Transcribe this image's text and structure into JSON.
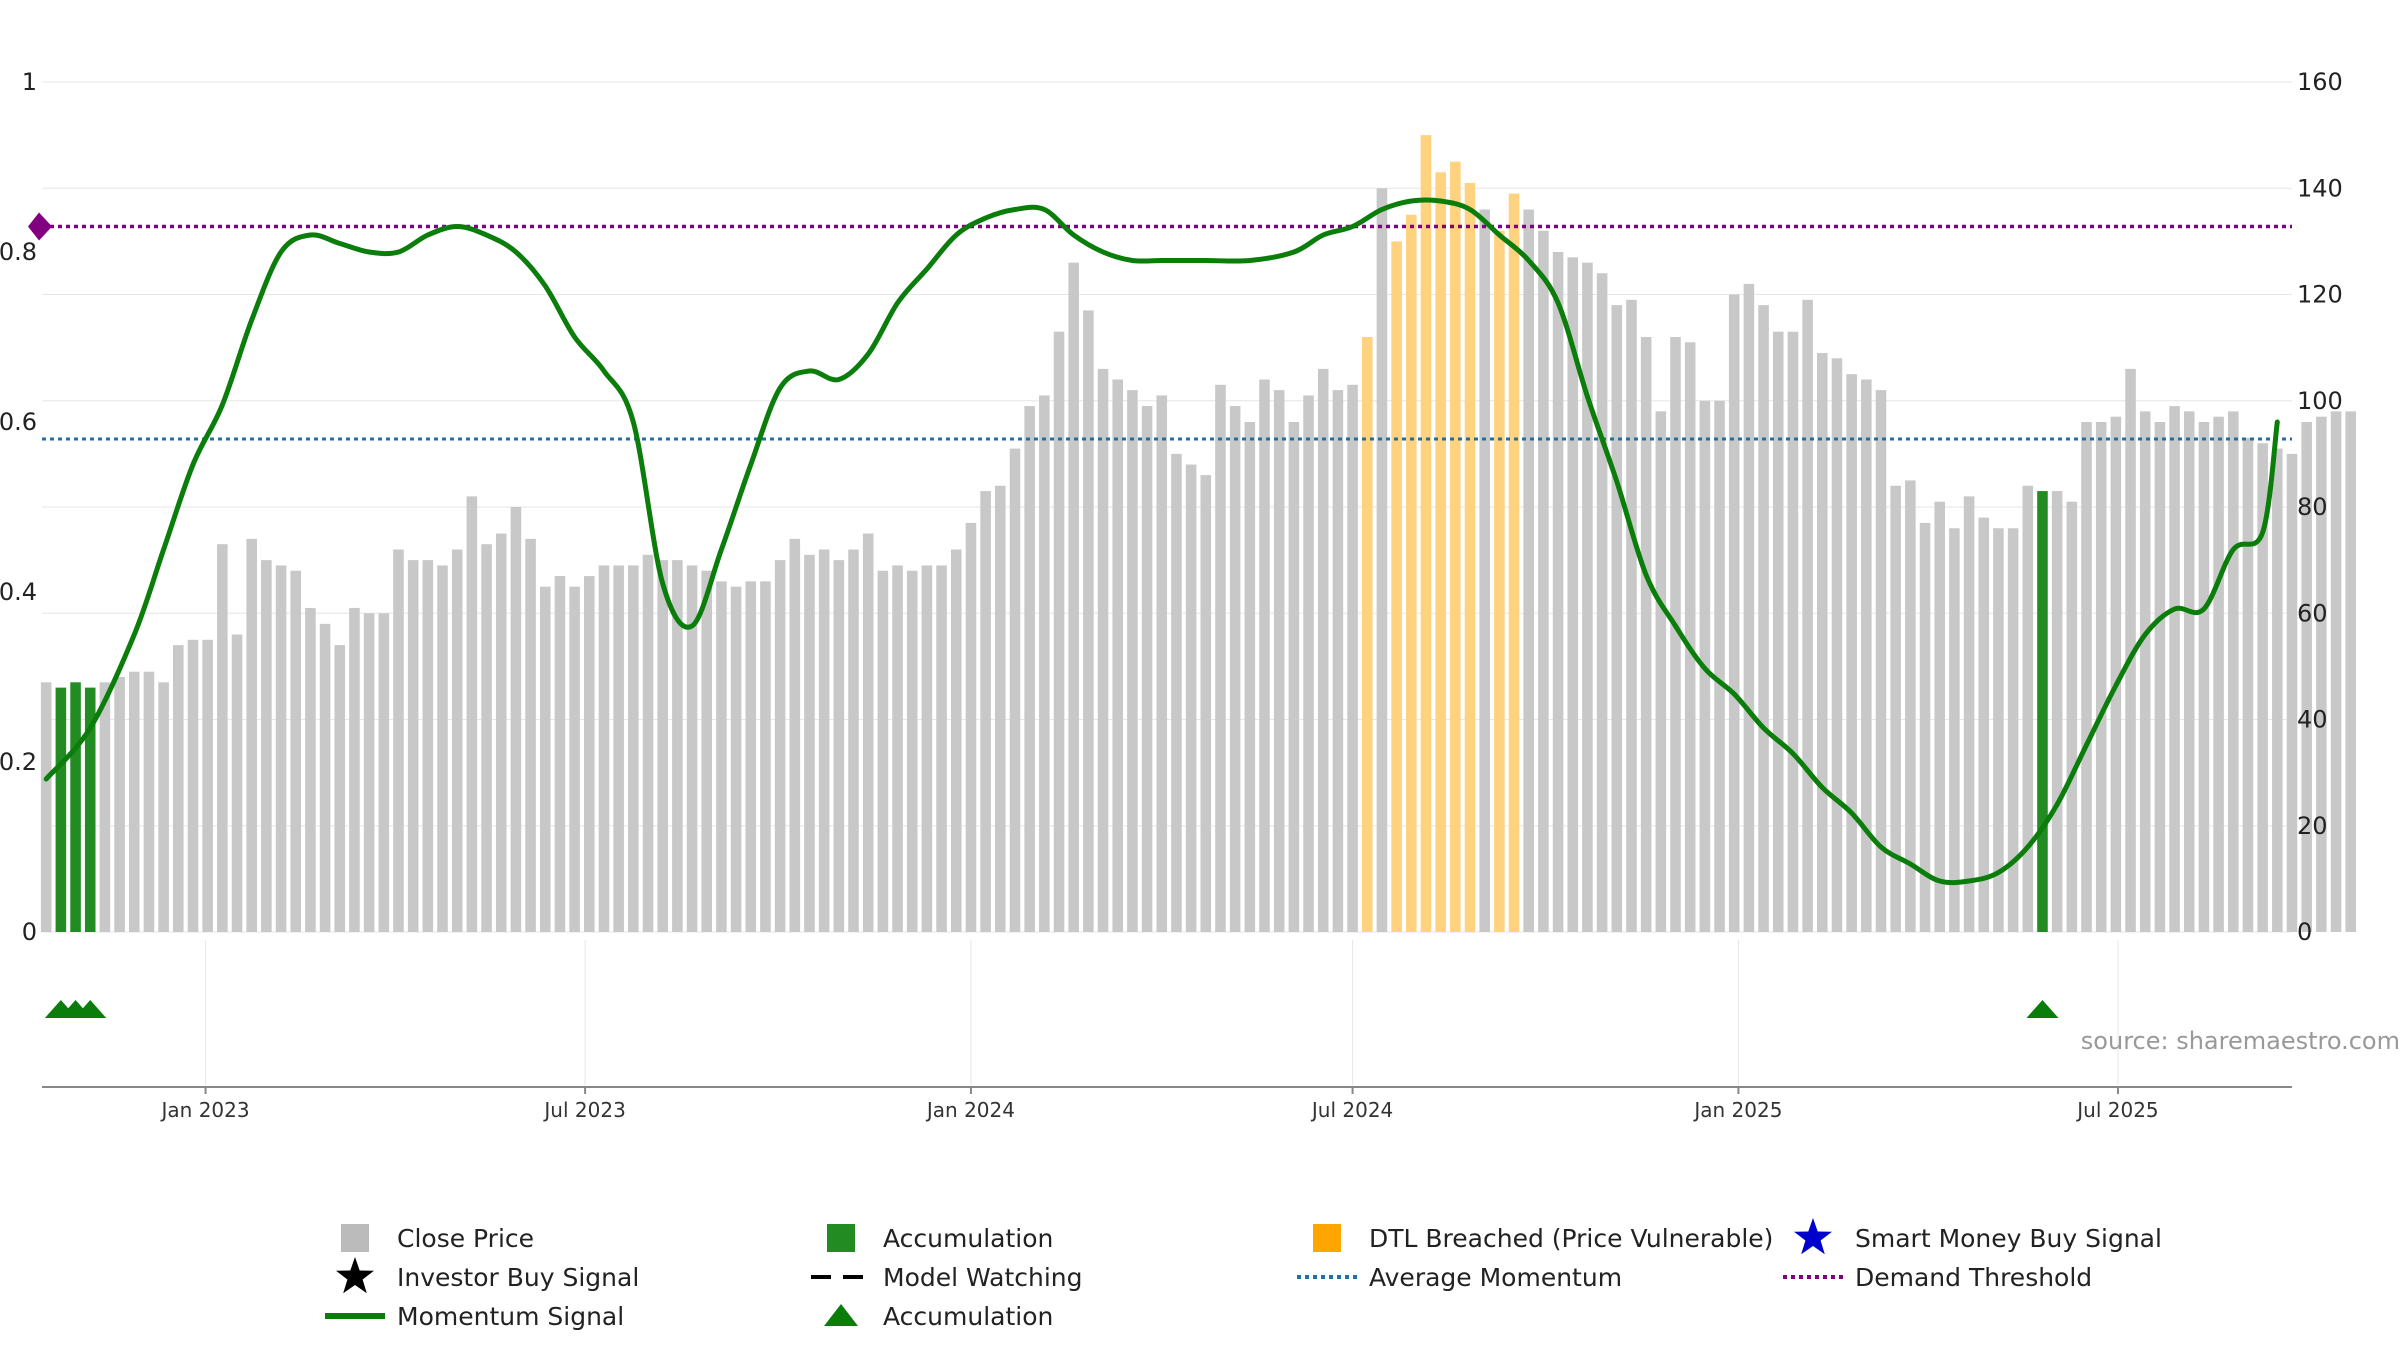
{
  "chart_data": {
    "type": "bar+line",
    "title": "",
    "source": "source: sharemaestro.com",
    "left_axis": {
      "range": [
        0,
        1
      ],
      "tick_values": [
        0,
        0.2,
        0.4,
        0.6,
        0.8,
        1
      ],
      "tick_labels": [
        "0",
        "0.2",
        "0.4",
        "0.6",
        "0.8",
        "1"
      ]
    },
    "right_axis": {
      "range": [
        0,
        160
      ],
      "tick_values": [
        0,
        20,
        40,
        60,
        80,
        100,
        120,
        140,
        160
      ],
      "tick_labels": [
        "0",
        "20",
        "40",
        "60",
        "80",
        "100",
        "120",
        "140",
        "160"
      ]
    },
    "x_axis": {
      "start": "2022-10-15",
      "end": "2025-09-22",
      "ticks": [
        {
          "date": "2023-01-01",
          "label": "Jan 2023"
        },
        {
          "date": "2023-07-01",
          "label": "Jul 2023"
        },
        {
          "date": "2024-01-01",
          "label": "Jan 2024"
        },
        {
          "date": "2024-07-01",
          "label": "Jul 2024"
        },
        {
          "date": "2025-01-01",
          "label": "Jan 2025"
        },
        {
          "date": "2025-07-01",
          "label": "Jul 2025"
        }
      ]
    },
    "close_price": {
      "first_week": "2022-10-17",
      "interval_days": 7,
      "values": [
        47,
        46,
        47,
        46,
        47,
        48,
        49,
        49,
        47,
        54,
        55,
        55,
        73,
        56,
        74,
        70,
        69,
        68,
        61,
        58,
        54,
        61,
        60,
        60,
        72,
        70,
        70,
        69,
        72,
        82,
        73,
        75,
        80,
        74,
        65,
        67,
        65,
        67,
        69,
        69,
        69,
        71,
        70,
        70,
        69,
        68,
        66,
        65,
        66,
        66,
        70,
        74,
        71,
        72,
        70,
        72,
        75,
        68,
        69,
        68,
        69,
        69,
        72,
        77,
        83,
        84,
        91,
        99,
        101,
        113,
        126,
        117,
        106,
        104,
        102,
        99,
        101,
        90,
        88,
        86,
        103,
        99,
        96,
        104,
        102,
        96,
        101,
        106,
        102,
        103,
        112,
        140,
        130,
        135,
        150,
        143,
        145,
        141,
        136,
        132,
        139,
        136,
        132,
        128,
        127,
        126,
        124,
        118,
        119,
        112,
        98,
        112,
        111,
        100,
        100,
        120,
        122,
        118,
        113,
        113,
        119,
        109,
        108,
        105,
        104,
        102,
        84,
        85,
        77,
        81,
        76,
        82,
        78,
        76,
        76,
        84,
        83,
        83,
        81,
        96,
        96,
        97,
        106,
        98,
        96,
        99,
        98,
        96,
        97,
        98,
        93,
        92,
        91,
        90,
        96,
        97,
        98,
        98
      ],
      "accumulation_weeks": [
        1,
        2,
        3,
        136
      ],
      "dtl_breached_weeks": [
        90,
        92,
        93,
        94,
        95,
        96,
        97,
        99,
        100
      ]
    },
    "momentum_signal": {
      "dates": [
        "2022-10-17",
        "2022-11-07",
        "2022-11-28",
        "2022-12-12",
        "2022-12-26",
        "2023-01-09",
        "2023-01-23",
        "2023-02-06",
        "2023-02-20",
        "2023-03-06",
        "2023-03-20",
        "2023-04-03",
        "2023-04-17",
        "2023-05-01",
        "2023-05-15",
        "2023-05-29",
        "2023-06-12",
        "2023-06-26",
        "2023-07-10",
        "2023-07-24",
        "2023-08-07",
        "2023-08-21",
        "2023-09-04",
        "2023-09-18",
        "2023-10-02",
        "2023-10-16",
        "2023-10-30",
        "2023-11-13",
        "2023-11-27",
        "2023-12-11",
        "2023-12-25",
        "2024-01-08",
        "2024-01-22",
        "2024-02-05",
        "2024-02-19",
        "2024-03-04",
        "2024-03-18",
        "2024-04-01",
        "2024-04-22",
        "2024-05-13",
        "2024-06-03",
        "2024-06-17",
        "2024-07-01",
        "2024-07-15",
        "2024-07-29",
        "2024-08-12",
        "2024-08-26",
        "2024-09-09",
        "2024-09-23",
        "2024-10-07",
        "2024-10-21",
        "2024-11-04",
        "2024-11-18",
        "2024-12-02",
        "2024-12-16",
        "2024-12-30",
        "2025-01-13",
        "2025-01-27",
        "2025-02-10",
        "2025-02-24",
        "2025-03-10",
        "2025-03-24",
        "2025-04-07",
        "2025-04-21",
        "2025-05-05",
        "2025-05-19",
        "2025-06-02",
        "2025-06-16",
        "2025-06-30",
        "2025-07-14",
        "2025-07-28",
        "2025-08-11",
        "2025-08-25",
        "2025-09-08",
        "2025-09-15"
      ],
      "values": [
        0.18,
        0.24,
        0.35,
        0.45,
        0.55,
        0.62,
        0.72,
        0.8,
        0.82,
        0.81,
        0.8,
        0.8,
        0.82,
        0.83,
        0.82,
        0.8,
        0.76,
        0.7,
        0.66,
        0.6,
        0.41,
        0.36,
        0.45,
        0.55,
        0.64,
        0.66,
        0.65,
        0.68,
        0.74,
        0.78,
        0.82,
        0.84,
        0.85,
        0.85,
        0.82,
        0.8,
        0.79,
        0.79,
        0.79,
        0.79,
        0.8,
        0.82,
        0.83,
        0.85,
        0.86,
        0.86,
        0.85,
        0.82,
        0.79,
        0.74,
        0.63,
        0.53,
        0.42,
        0.36,
        0.31,
        0.28,
        0.24,
        0.21,
        0.17,
        0.14,
        0.1,
        0.08,
        0.06,
        0.06,
        0.07,
        0.1,
        0.15,
        0.22,
        0.29,
        0.35,
        0.38,
        0.38,
        0.45,
        0.47,
        0.6
      ]
    },
    "average_momentum": 0.58,
    "demand_threshold": 0.83,
    "investor_markers": [
      {
        "type": "accumulation-triangle",
        "week": 1
      },
      {
        "type": "accumulation-triangle",
        "week": 2
      },
      {
        "type": "accumulation-triangle",
        "week": 3
      },
      {
        "type": "accumulation-triangle",
        "week": 136
      }
    ],
    "legend": [
      {
        "key": "close",
        "label": "Close Price",
        "symbol": "square",
        "color": "#bbbbbb"
      },
      {
        "key": "accum",
        "label": "Accumulation",
        "symbol": "square",
        "color": "#228B22"
      },
      {
        "key": "dtl",
        "label": "DTL Breached (Price Vulnerable)",
        "symbol": "square",
        "color": "#FFA500"
      },
      {
        "key": "smart",
        "label": "Smart Money Buy Signal",
        "symbol": "star",
        "color": "#0000CC"
      },
      {
        "key": "investor",
        "label": "Investor Buy Signal",
        "symbol": "star",
        "color": "#000000"
      },
      {
        "key": "watching",
        "label": "Model Watching",
        "symbol": "dash",
        "color": "#000000"
      },
      {
        "key": "avgmom",
        "label": "Average Momentum",
        "symbol": "dotted",
        "color": "#1f6f9f"
      },
      {
        "key": "demand",
        "label": "Demand Threshold",
        "symbol": "dotted",
        "color": "#800080"
      },
      {
        "key": "momentum",
        "label": "Momentum Signal",
        "symbol": "line",
        "color": "#0a7d0a"
      },
      {
        "key": "accum_tri",
        "label": "Accumulation",
        "symbol": "triangle",
        "color": "#0a7d0a"
      }
    ],
    "colors": {
      "close": "#c8c8c8",
      "accumulation": "#228B22",
      "dtl": "#FFD280",
      "momentum": "#0a7d0a",
      "average_momentum": "#1f6f9f",
      "demand_threshold": "#800080",
      "grid": "#e6e6e6"
    }
  }
}
